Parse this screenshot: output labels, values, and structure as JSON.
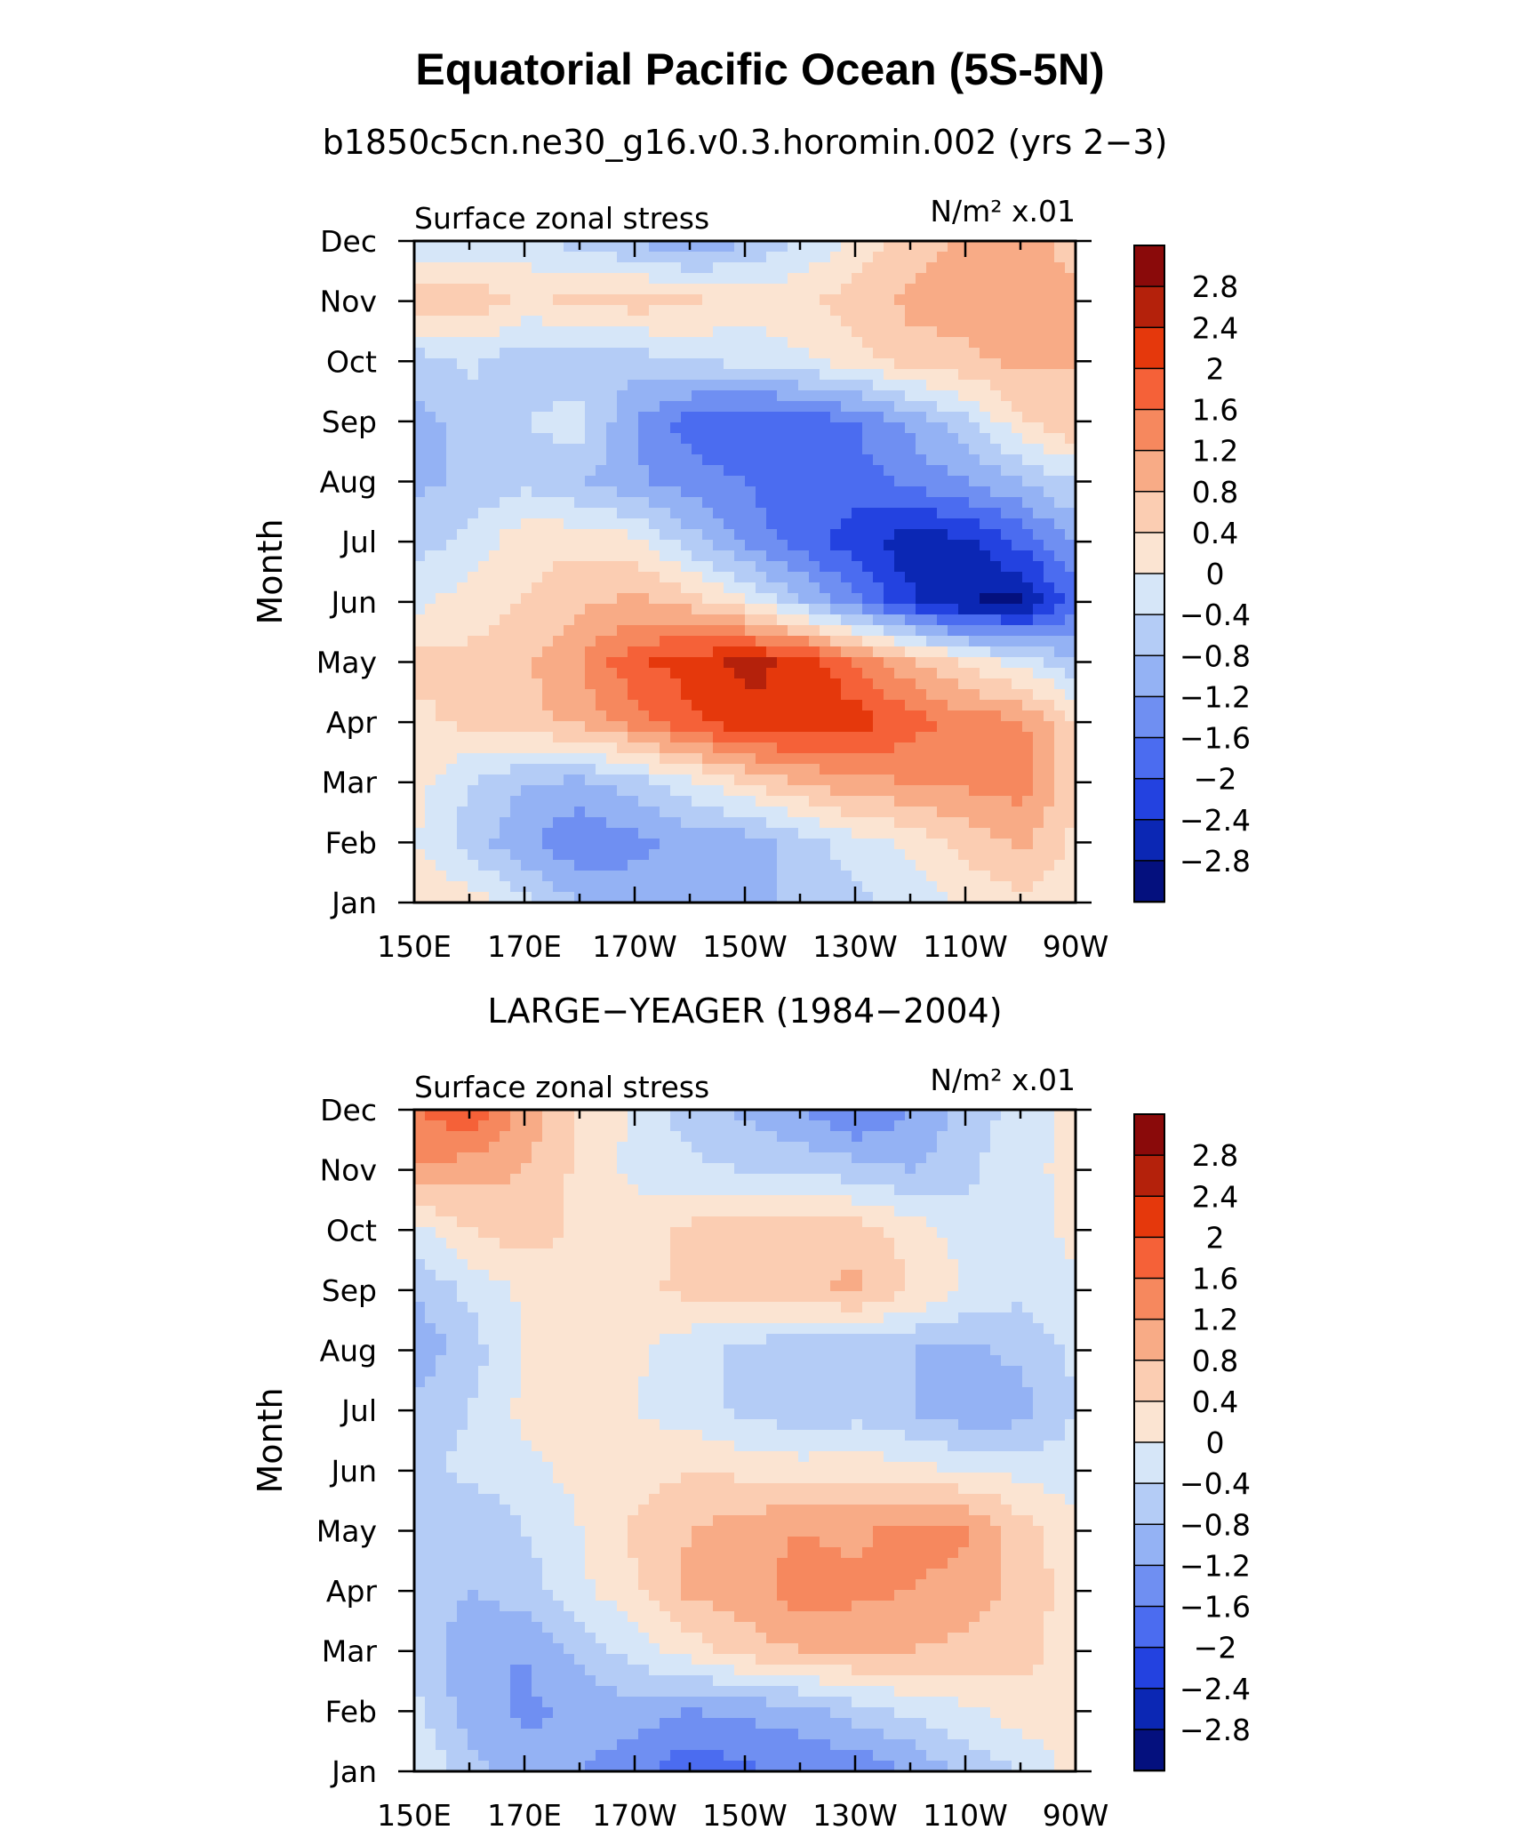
{
  "title": "Equatorial Pacific Ocean (5S-5N)",
  "chart_data": [
    {
      "type": "heatmap",
      "title": "b1850c5cn.ne30_g16.v0.3.horomin.002 (yrs 2−3)",
      "left_label": "Surface zonal stress",
      "units": "N/m² x.01",
      "ylabel": "Month",
      "xlabel": "",
      "x_ticks": [
        "150E",
        "170E",
        "170W",
        "150W",
        "130W",
        "110W",
        "90W"
      ],
      "y_ticks": [
        "Jan",
        "Feb",
        "Mar",
        "Apr",
        "May",
        "Jun",
        "Jul",
        "Aug",
        "Sep",
        "Oct",
        "Nov",
        "Dec"
      ],
      "x_values": [
        150,
        160,
        170,
        180,
        190,
        200,
        210,
        220,
        230,
        240,
        250,
        260,
        270
      ],
      "colorbar_levels": [
        "2.8",
        "2.4",
        "2",
        "1.6",
        "1.2",
        "0.8",
        "0.4",
        "0",
        "−0.4",
        "−0.8",
        "−1.2",
        "−1.6",
        "−2",
        "−2.4",
        "−2.8"
      ],
      "z": [
        [
          0.4,
          0.2,
          -0.3,
          -0.8,
          -1.0,
          -1.0,
          -0.9,
          -0.7,
          -0.5,
          -0.3,
          0.1,
          0.3,
          0.1
        ],
        [
          0.0,
          -0.6,
          -1.1,
          -1.6,
          -1.3,
          -1.1,
          -1.0,
          -0.6,
          -0.2,
          0.1,
          0.5,
          0.9,
          0.3
        ],
        [
          0.2,
          -0.4,
          -0.8,
          -0.9,
          -0.6,
          -0.1,
          0.4,
          0.8,
          1.1,
          1.2,
          1.3,
          1.4,
          0.5
        ],
        [
          0.3,
          0.5,
          0.7,
          0.9,
          1.4,
          1.9,
          2.3,
          2.4,
          2.2,
          1.8,
          1.4,
          1.3,
          0.4
        ],
        [
          0.5,
          0.5,
          0.7,
          1.2,
          1.9,
          2.2,
          2.5,
          2.3,
          1.6,
          0.9,
          0.3,
          -0.2,
          -0.7
        ],
        [
          -0.1,
          0.2,
          0.4,
          0.7,
          0.9,
          0.6,
          0.1,
          -0.7,
          -1.5,
          -2.3,
          -2.8,
          -2.9,
          -1.8
        ],
        [
          -0.6,
          -0.3,
          0.3,
          0.3,
          0.1,
          -0.6,
          -1.3,
          -1.8,
          -2.2,
          -2.7,
          -2.5,
          -1.9,
          -1.1
        ],
        [
          -0.9,
          -0.7,
          -0.5,
          -0.8,
          -1.1,
          -1.4,
          -1.6,
          -1.9,
          -1.8,
          -1.5,
          -1.2,
          -0.8,
          -0.4
        ],
        [
          -1.0,
          -0.6,
          -0.4,
          -0.2,
          -1.2,
          -1.8,
          -2.0,
          -1.9,
          -1.6,
          -1.1,
          -0.5,
          0.3,
          0.8
        ],
        [
          -0.6,
          -0.3,
          -0.7,
          -0.8,
          -0.6,
          -0.4,
          -0.3,
          -0.1,
          0.2,
          0.6,
          0.7,
          0.9,
          0.8
        ],
        [
          0.6,
          0.7,
          0.3,
          0.5,
          0.6,
          0.5,
          0.2,
          0.3,
          0.6,
          0.9,
          1.0,
          1.1,
          0.9
        ],
        [
          -0.4,
          -0.3,
          -0.2,
          -0.6,
          -0.8,
          -1.2,
          -0.8,
          -0.4,
          0.1,
          0.6,
          0.9,
          1.0,
          0.6
        ]
      ]
    },
    {
      "type": "heatmap",
      "title": "LARGE−YEAGER (1984−2004)",
      "left_label": "Surface zonal stress",
      "units": "N/m² x.01",
      "ylabel": "Month",
      "xlabel": "",
      "x_ticks": [
        "150E",
        "170E",
        "170W",
        "150W",
        "130W",
        "110W",
        "90W"
      ],
      "y_ticks": [
        "Jan",
        "Feb",
        "Mar",
        "Apr",
        "May",
        "Jun",
        "Jul",
        "Aug",
        "Sep",
        "Oct",
        "Nov",
        "Dec"
      ],
      "x_values": [
        150,
        160,
        170,
        180,
        190,
        200,
        210,
        220,
        230,
        240,
        250,
        260,
        270
      ],
      "colorbar_levels": [
        "2.8",
        "2.4",
        "2",
        "1.6",
        "1.2",
        "0.8",
        "0.4",
        "0",
        "−0.4",
        "−0.8",
        "−1.2",
        "−1.6",
        "−2",
        "−2.4",
        "−2.8"
      ],
      "z": [
        [
          0.1,
          -0.6,
          -1.0,
          -1.2,
          -1.4,
          -1.9,
          -1.7,
          -1.5,
          -1.6,
          -1.2,
          -0.7,
          -0.4,
          0.2
        ],
        [
          -0.3,
          -1.0,
          -1.3,
          -1.1,
          -1.0,
          -1.2,
          -1.1,
          -1.0,
          -0.6,
          -0.3,
          -0.1,
          0.2,
          0.2
        ],
        [
          -0.5,
          -1.1,
          -1.2,
          -0.7,
          -0.2,
          0.2,
          0.6,
          0.8,
          0.9,
          0.8,
          0.7,
          0.6,
          0.1
        ],
        [
          -0.4,
          -0.8,
          -0.6,
          -0.1,
          0.3,
          0.9,
          1.0,
          1.4,
          1.3,
          1.2,
          1.0,
          0.7,
          0.2
        ],
        [
          -0.4,
          -0.8,
          -0.4,
          0.0,
          0.5,
          0.8,
          1.0,
          1.2,
          1.1,
          1.4,
          1.3,
          0.6,
          0.1
        ],
        [
          -0.5,
          -0.3,
          -0.1,
          0.1,
          0.2,
          0.4,
          0.3,
          0.2,
          0.3,
          0.1,
          0.0,
          -0.1,
          -0.2
        ],
        [
          -0.6,
          -0.4,
          0.1,
          0.3,
          0.0,
          -0.2,
          -0.5,
          -0.7,
          -0.6,
          -0.8,
          -1.1,
          -1.0,
          -0.4
        ],
        [
          -1.1,
          -0.6,
          0.0,
          0.2,
          0.1,
          -0.3,
          -0.5,
          -0.8,
          -0.7,
          -0.8,
          -0.9,
          -0.7,
          -0.3
        ],
        [
          -0.8,
          -0.3,
          0.1,
          0.2,
          0.3,
          0.5,
          0.6,
          0.7,
          0.9,
          0.4,
          0.0,
          -0.3,
          -0.1
        ],
        [
          -0.2,
          0.4,
          0.6,
          0.3,
          0.2,
          0.5,
          0.7,
          0.6,
          0.6,
          0.2,
          -0.2,
          -0.4,
          0.2
        ],
        [
          1.2,
          1.0,
          0.8,
          0.3,
          -0.1,
          -0.3,
          -0.4,
          -0.5,
          -0.6,
          -0.8,
          -0.5,
          -0.1,
          0.1
        ],
        [
          1.6,
          1.9,
          1.1,
          0.4,
          -0.1,
          -0.6,
          -0.9,
          -1.2,
          -1.7,
          -1.2,
          -0.7,
          -0.2,
          0.1
        ]
      ]
    }
  ],
  "colors": {
    "levels": [
      "#fbe4d2",
      "#fbcdb2",
      "#f8ab86",
      "#f6885e",
      "#f56138",
      "#e5380c",
      "#b4210b",
      "#8a0a0a"
    ],
    "neg_levels": [
      "#d6e6f8",
      "#b4ccf6",
      "#94b2f4",
      "#6f8ff2",
      "#4b6cf0",
      "#2342e0",
      "#0b27b4",
      "#04107e"
    ]
  }
}
